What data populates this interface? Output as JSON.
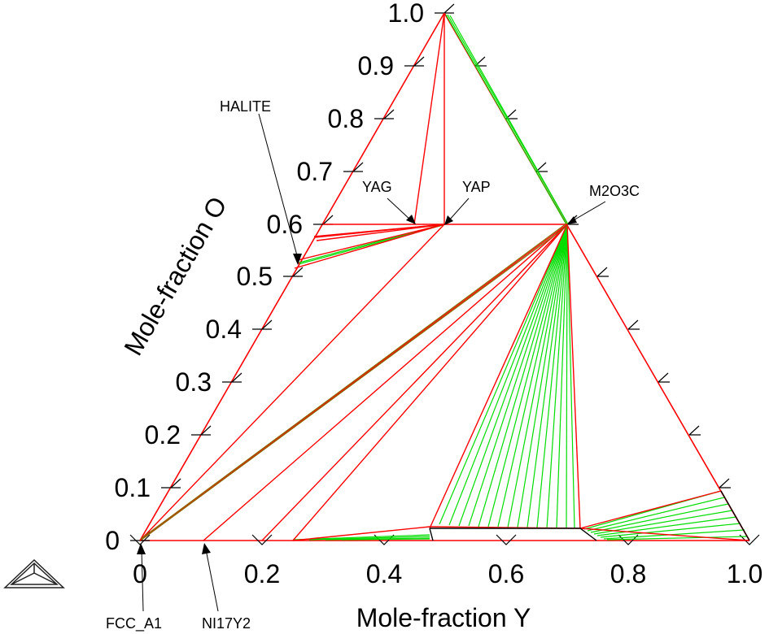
{
  "diagram": {
    "type": "ternary-phase-diagram",
    "axis_titles": {
      "x": "Mole-fraction Y",
      "left": "Mole-fraction O"
    },
    "x_ticks": [
      "0",
      "0.2",
      "0.4",
      "0.6",
      "0.8",
      "1.0"
    ],
    "left_ticks": [
      "0",
      "0.1",
      "0.2",
      "0.3",
      "0.4",
      "0.5",
      "0.6",
      "0.7",
      "0.8",
      "0.9",
      "1.0"
    ],
    "phase_labels": {
      "halite": "HALITE",
      "yag": "YAG",
      "yap": "YAP",
      "m2o3c": "M2O3C",
      "fcc": "FCC_A1",
      "ni17y2": "NI17Y2"
    },
    "colors": {
      "boundary": "#ff0000",
      "tieline": "#00dd00",
      "frame": "#000000",
      "dark_line": "#8a6a00"
    },
    "icon": "ternary-triangle-icon"
  }
}
